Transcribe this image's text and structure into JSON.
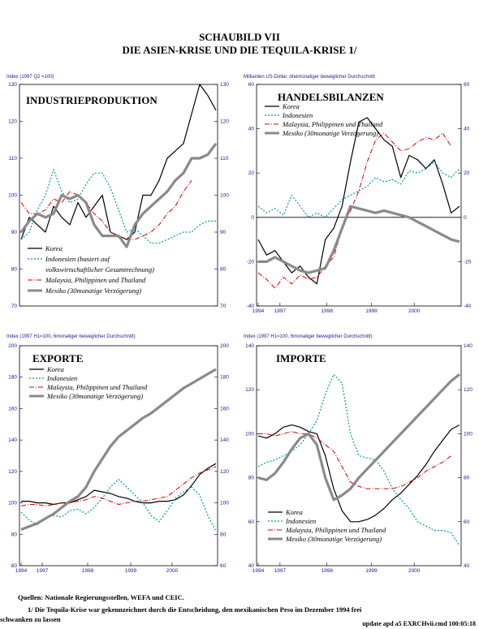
{
  "title": "SCHAUBILD VII",
  "subtitle": "DIE ASIEN-KRISE UND DIE TEQUILA-KRISE 1/",
  "footer": {
    "sources": "Quellen:  Nationale Regierungsstellen, WEFA und CEIC.",
    "note_line1": "1/ Die Tequila-Krise war gekennzeichnet durch die Entscheidung, den mexikanischen Peso im Dezember 1994 frei",
    "note_line2": "schwanken zu lassen",
    "file_stamp": "update apd a5  EXRCHvii.cmd 100:05:18"
  },
  "chart_data": [
    {
      "type": "line",
      "title": "INDUSTRIEPRODUKTION",
      "unit_label": "Index (1997 Q2 =100)",
      "ylim": [
        70,
        130
      ],
      "yticks": [
        70,
        80,
        90,
        100,
        110,
        120,
        130
      ],
      "xticks": [],
      "zero_line": false,
      "x": [
        0,
        1,
        2,
        3,
        4,
        5,
        6,
        7,
        8,
        9,
        10,
        11,
        12,
        13,
        14,
        15,
        16,
        17,
        18,
        19,
        20,
        21,
        22,
        23,
        24
      ],
      "series": [
        {
          "name": "Korea",
          "color": "#000000",
          "dash": "",
          "width": 1.2,
          "values": [
            88,
            94,
            92,
            90,
            97,
            94,
            92,
            98,
            94,
            97,
            100,
            90,
            89,
            88,
            90,
            100,
            100,
            104,
            110,
            112,
            114,
            122,
            130,
            127,
            123
          ]
        },
        {
          "name": "Indonesien (basiert auf volkswirtschaftlicher Gesamtrechnung)",
          "color": "#009999",
          "dash": "2,2",
          "width": 1.2,
          "values": [
            88,
            90,
            96,
            100,
            107,
            101,
            98,
            99,
            103,
            106,
            106,
            102,
            96,
            90,
            91,
            89,
            87,
            87,
            88,
            89,
            90,
            90,
            92,
            93,
            93
          ]
        },
        {
          "name": "Malaysia, Philippinen und Thailand",
          "color": "#cc0000",
          "dash": "6,2,1,2",
          "width": 1.0,
          "values": [
            98,
            95,
            95,
            96,
            99,
            98,
            101,
            100,
            98,
            95,
            93,
            90,
            89,
            88,
            88,
            89,
            90,
            92,
            95,
            97,
            101,
            104,
            null,
            null,
            null
          ]
        },
        {
          "name": "Mexiko (30monatige Verzögerung)",
          "color": "#8a8a8a",
          "dash": "",
          "width": 3.2,
          "values": [
            90,
            93,
            95,
            94,
            95,
            100,
            99,
            100,
            98,
            92,
            89,
            89,
            89,
            86,
            92,
            95,
            97,
            99,
            101,
            104,
            106,
            110,
            110,
            111,
            114
          ]
        }
      ],
      "legend": [
        "Korea",
        "Indonesien (basiert auf",
        "volkswirtschaftlicher Gesamtrechnung)",
        "Malaysia, Philippinen und Thailand",
        "Mexiko (30monatige Verzögerung)"
      ]
    },
    {
      "type": "line",
      "title": "HANDELSBILANZEN",
      "unit_label": "Milliarden US-Dollar, dreimonatiger beweglicher Durchschnitt",
      "ylim": [
        -40,
        60
      ],
      "yticks": [
        -40,
        -20,
        0,
        20,
        40,
        60
      ],
      "xticks": [
        "1994",
        "1997",
        "1998",
        "1999",
        "2000"
      ],
      "zero_line": true,
      "x": [
        0,
        1,
        2,
        3,
        4,
        5,
        6,
        7,
        8,
        9,
        10,
        11,
        12,
        13,
        14,
        15,
        16,
        17,
        18,
        19,
        20,
        21,
        22,
        23,
        24
      ],
      "series": [
        {
          "name": "Korea",
          "color": "#000000",
          "dash": "",
          "width": 1.2,
          "values": [
            -10,
            -17,
            -15,
            -20,
            -25,
            -22,
            -27,
            -30,
            -10,
            -5,
            5,
            25,
            43,
            45,
            40,
            35,
            32,
            18,
            28,
            26,
            22,
            26,
            15,
            2,
            5
          ]
        },
        {
          "name": "Indonesien",
          "color": "#009999",
          "dash": "2,2",
          "width": 1.2,
          "values": [
            5,
            2,
            4,
            1,
            10,
            5,
            0,
            2,
            0,
            4,
            8,
            10,
            12,
            14,
            18,
            16,
            17,
            15,
            21,
            20,
            22,
            25,
            20,
            18,
            22
          ]
        },
        {
          "name": "Malaysia, Philippinen und Thailand",
          "color": "#cc0000",
          "dash": "6,2,1,2",
          "width": 1.0,
          "values": [
            -25,
            -28,
            -32,
            -27,
            -30,
            -26,
            -28,
            -27,
            -22,
            -18,
            -5,
            3,
            12,
            25,
            35,
            38,
            34,
            30,
            31,
            34,
            36,
            35,
            38,
            32,
            null
          ]
        },
        {
          "name": "Mexiko (30monatige Verzögerung)",
          "color": "#8a8a8a",
          "dash": "",
          "width": 3.2,
          "values": [
            -20,
            -20,
            -18,
            -20,
            -22,
            -24,
            -25,
            -24,
            -23,
            -15,
            -5,
            5,
            4,
            3,
            2,
            3,
            2,
            1,
            0,
            -2,
            -4,
            -6,
            -8,
            -10,
            -11
          ]
        }
      ],
      "legend": [
        "Korea",
        "Indonesien",
        "Malaysia, Philippinen und Thailand",
        "Mexiko (30monatige Verzögerung)"
      ]
    },
    {
      "type": "line",
      "title": "EXPORTE",
      "unit_label": "Index (1997 H1=100, 6monatiger beweglicher Durchschnitt)",
      "ylim": [
        60,
        200
      ],
      "yticks": [
        60,
        80,
        100,
        120,
        140,
        160,
        180,
        200
      ],
      "xticks": [
        "1994",
        "1997",
        "1998",
        "1999",
        "2000"
      ],
      "zero_line": false,
      "x": [
        0,
        1,
        2,
        3,
        4,
        5,
        6,
        7,
        8,
        9,
        10,
        11,
        12,
        13,
        14,
        15,
        16,
        17,
        18,
        19,
        20,
        21,
        22,
        23,
        24
      ],
      "series": [
        {
          "name": "Korea",
          "color": "#000000",
          "dash": "",
          "width": 1.2,
          "values": [
            101,
            101,
            100,
            100,
            99,
            100,
            100,
            102,
            104,
            108,
            107,
            106,
            104,
            103,
            101,
            100,
            100,
            101,
            101,
            102,
            105,
            111,
            118,
            122,
            125
          ]
        },
        {
          "name": "Indonesien",
          "color": "#009999",
          "dash": "2,2",
          "width": 1.2,
          "values": [
            94,
            89,
            86,
            90,
            92,
            91,
            95,
            96,
            93,
            97,
            103,
            110,
            115,
            110,
            105,
            100,
            92,
            88,
            95,
            103,
            107,
            110,
            105,
            92,
            82
          ]
        },
        {
          "name": "Malaysia, Philippinen und Thailand",
          "color": "#cc0000",
          "dash": "6,2,1,2",
          "width": 1.0,
          "values": [
            98,
            99,
            99,
            98,
            99,
            100,
            100,
            101,
            102,
            104,
            103,
            101,
            99,
            100,
            101,
            101,
            102,
            103,
            104,
            108,
            112,
            116,
            119,
            121,
            123
          ]
        },
        {
          "name": "Mexiko (30monatige Verzögerung)",
          "color": "#8a8a8a",
          "dash": "",
          "width": 3.2,
          "values": [
            83,
            85,
            87,
            90,
            93,
            97,
            101,
            104,
            110,
            120,
            128,
            136,
            142,
            146,
            150,
            154,
            157,
            161,
            165,
            169,
            173,
            176,
            179,
            182,
            185
          ]
        }
      ],
      "legend": [
        "Korea",
        "Indonesien",
        "Malaysia, Philippinen und Thailand",
        "Mexiko (30monatige Verzögerung)"
      ]
    },
    {
      "type": "line",
      "title": "IMPORTE",
      "unit_label": "Index (1997 H1=100, 6monatiger beweglicher Durchschnitt)",
      "ylim": [
        40,
        140
      ],
      "yticks": [
        40,
        60,
        80,
        100,
        120,
        140
      ],
      "xticks": [
        "1994",
        "1997",
        "1998",
        "1999",
        "2000"
      ],
      "zero_line": false,
      "x": [
        0,
        1,
        2,
        3,
        4,
        5,
        6,
        7,
        8,
        9,
        10,
        11,
        12,
        13,
        14,
        15,
        16,
        17,
        18,
        19,
        20,
        21,
        22,
        23,
        24
      ],
      "series": [
        {
          "name": "Korea",
          "color": "#000000",
          "dash": "",
          "width": 1.2,
          "values": [
            99,
            98,
            100,
            103,
            104,
            103,
            101,
            100,
            90,
            75,
            65,
            60,
            60,
            61,
            63,
            66,
            70,
            73,
            77,
            81,
            86,
            92,
            97,
            102,
            104
          ]
        },
        {
          "name": "Indonesien",
          "color": "#009999",
          "dash": "2,2",
          "width": 1.2,
          "values": [
            85,
            87,
            88,
            90,
            92,
            95,
            100,
            106,
            118,
            127,
            123,
            100,
            90,
            89,
            88,
            83,
            75,
            70,
            66,
            60,
            58,
            56,
            56,
            55,
            49
          ]
        },
        {
          "name": "Malaysia, Philippinen und Thailand",
          "color": "#cc0000",
          "dash": "6,2,1,2",
          "width": 1.0,
          "values": [
            100,
            100,
            99,
            100,
            101,
            100,
            100,
            98,
            95,
            92,
            85,
            78,
            76,
            75,
            75,
            75,
            75,
            76,
            78,
            80,
            83,
            85,
            87,
            90,
            null
          ]
        },
        {
          "name": "Mexiko (30monatige Verzögerung)",
          "color": "#8a8a8a",
          "dash": "",
          "width": 3.2,
          "values": [
            80,
            79,
            82,
            87,
            93,
            98,
            100,
            95,
            80,
            70,
            72,
            75,
            80,
            84,
            88,
            92,
            96,
            100,
            104,
            108,
            112,
            116,
            120,
            124,
            127
          ]
        }
      ],
      "legend": [
        "Korea",
        "Indonesien",
        "Malaysia, Philippinen und Thailand",
        "Mexiko (30monatige Verzögerung)"
      ]
    }
  ]
}
